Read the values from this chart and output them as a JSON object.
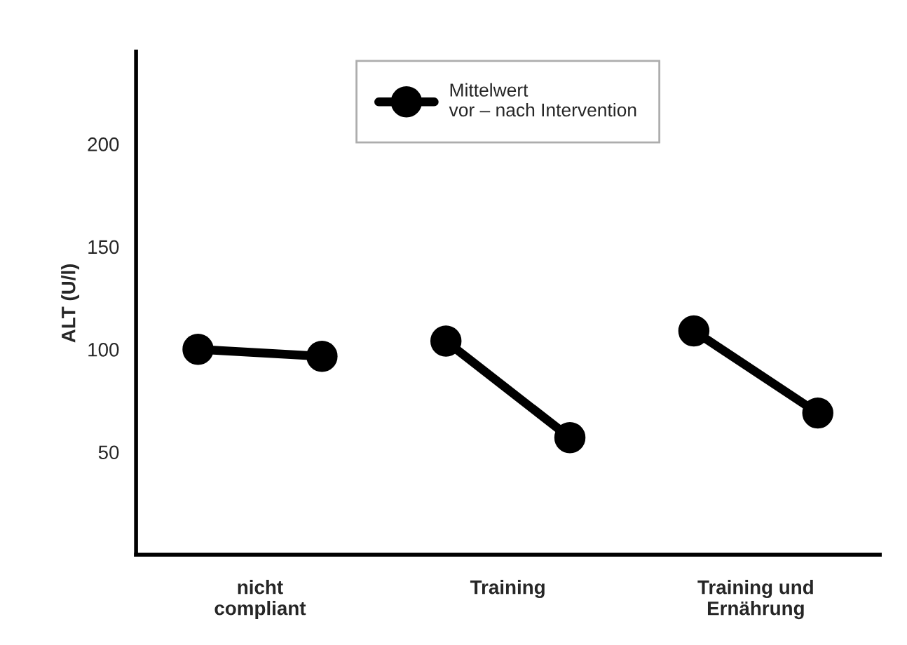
{
  "chart_data": {
    "type": "line",
    "ylabel": "ALT (U/l)",
    "categories": [
      null,
      null,
      null,
      null,
      null,
      null
    ],
    "annotations": [
      "nicht\ncompliant",
      "Training",
      "Training und\nErnährung"
    ],
    "series": [
      {
        "name": "Mittelwert\nvor – nach Intervention",
        "color": "#000000",
        "values": [
          100,
          96.6,
          null,
          null,
          null,
          null
        ]
      },
      {
        "color": "#000000",
        "values": [
          null,
          null,
          104,
          57,
          null,
          null
        ]
      },
      {
        "color": "#000000",
        "values": [
          null,
          null,
          null,
          null,
          109,
          69
        ]
      }
    ],
    "ylim": [
      0,
      245
    ],
    "yticks": [
      50,
      100,
      150,
      200
    ],
    "grid": false,
    "legend": "top",
    "marker": "circle",
    "line_style": "solid"
  }
}
